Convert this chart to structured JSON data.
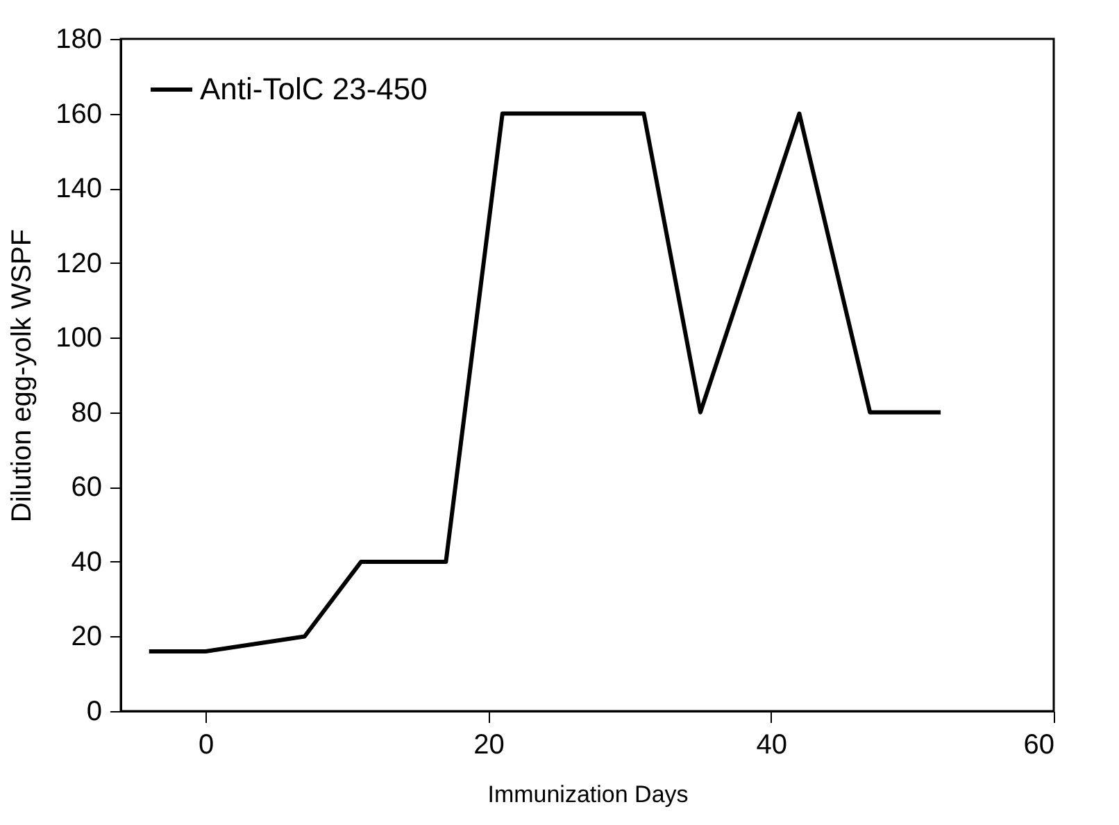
{
  "chart_data": {
    "type": "line",
    "xlabel": "Immunization Days",
    "ylabel": "Dilution egg-yolk WSPF",
    "x": [
      -4,
      0,
      7,
      11,
      17,
      21,
      31,
      35,
      42,
      47,
      52
    ],
    "series": [
      {
        "name": "Anti-TolC 23-450",
        "color": "#000000",
        "values": [
          16,
          16,
          20,
          40,
          40,
          160,
          160,
          80,
          160,
          80,
          80
        ]
      }
    ],
    "xlim": [
      -6,
      60
    ],
    "xticks": [
      0,
      20,
      40,
      60
    ],
    "ylim": [
      0,
      180
    ],
    "yticks": [
      0,
      20,
      40,
      60,
      80,
      100,
      120,
      140,
      160,
      180
    ],
    "grid": false,
    "legend": "top left",
    "marker": "none",
    "line_style": "solid"
  }
}
